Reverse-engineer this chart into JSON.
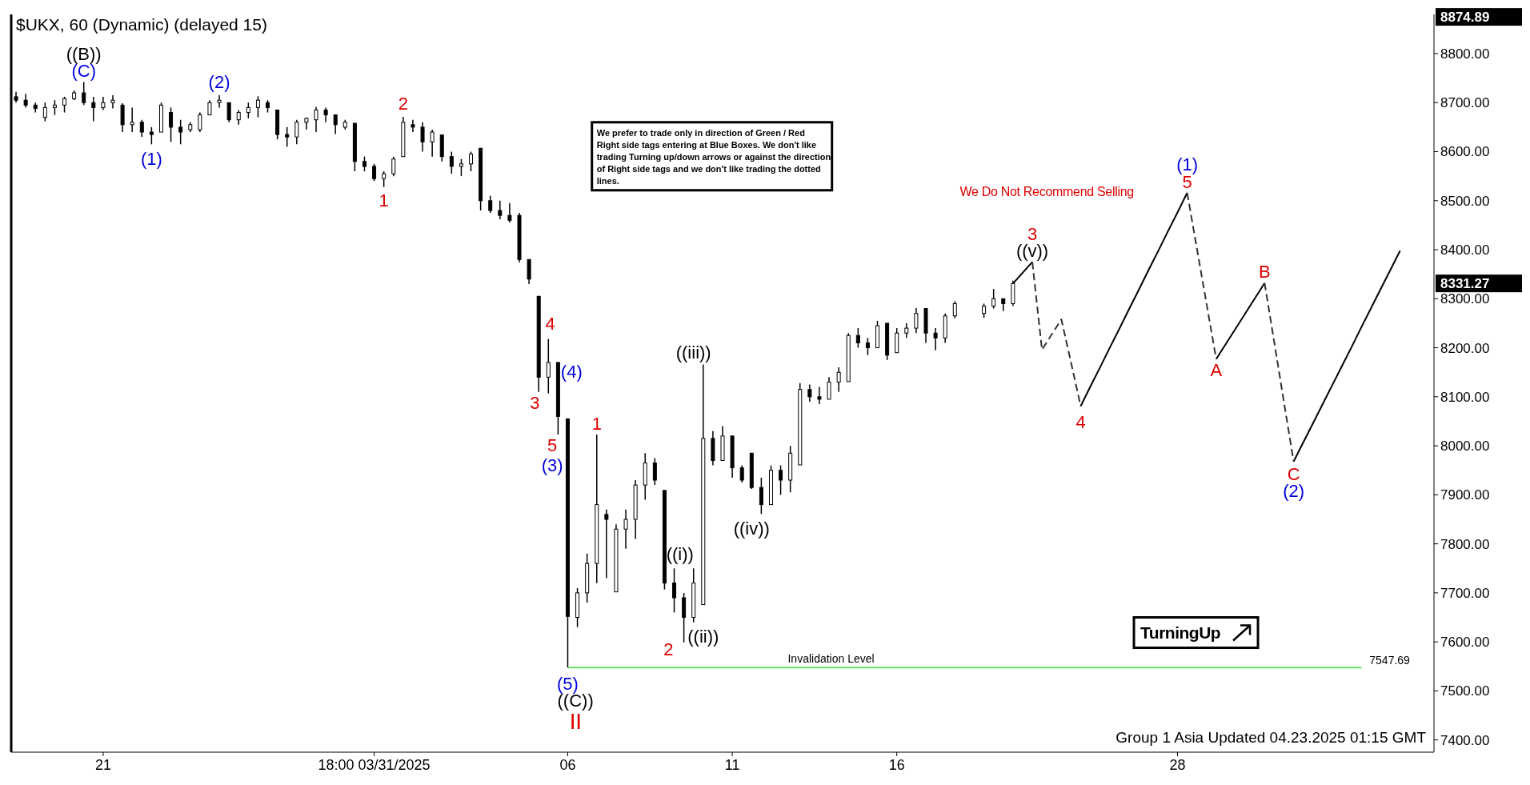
{
  "chart_data": {
    "type": "candlestick",
    "title": "$UKX, 60 (Dynamic) (delayed 15)",
    "categories": [
      null,
      null,
      null,
      null,
      null,
      null,
      null,
      null,
      null,
      "21",
      null,
      null,
      null,
      null,
      null,
      null,
      null,
      null,
      null,
      null,
      null,
      null,
      null,
      null,
      null,
      null,
      null,
      null,
      null,
      null,
      null,
      null,
      null,
      null,
      null,
      null,
      null,
      "18:00 03/31/2025",
      null,
      null,
      null,
      null,
      null,
      null,
      null,
      null,
      null,
      null,
      null,
      null,
      null,
      null,
      null,
      null,
      null,
      null,
      null,
      "06",
      null,
      null,
      null,
      null,
      null,
      null,
      null,
      null,
      null,
      null,
      null,
      null,
      null,
      null,
      null,
      null,
      "11",
      null,
      null,
      null,
      null,
      null,
      null,
      null,
      null,
      null,
      null,
      null,
      null,
      null,
      null,
      null,
      null,
      "16",
      null,
      null,
      null,
      null,
      null,
      null,
      null,
      null,
      null,
      null,
      null,
      null,
      null,
      null,
      null,
      null,
      null,
      null,
      null,
      null,
      null,
      null,
      null,
      null,
      null,
      null,
      null,
      null,
      "28",
      null,
      null,
      null,
      null,
      null,
      null,
      null,
      null,
      null,
      null,
      null,
      null,
      null,
      null,
      null,
      null,
      null,
      null,
      null,
      null,
      null,
      null,
      null,
      null,
      null,
      null
    ],
    "ohlc": [
      [
        8712,
        8722,
        8700,
        8705
      ],
      [
        8705,
        8718,
        8690,
        8695
      ],
      [
        8695,
        8700,
        8680,
        8688
      ],
      [
        8670,
        8700,
        8662,
        8690
      ],
      [
        8690,
        8705,
        8675,
        8695
      ],
      [
        8695,
        8712,
        8680,
        8708
      ],
      [
        8708,
        8725,
        8705,
        8720
      ],
      [
        8720,
        8742,
        8695,
        8700
      ],
      [
        8700,
        8712,
        8662,
        8690
      ],
      [
        8690,
        8712,
        8685,
        8700
      ],
      [
        8700,
        8715,
        8688,
        8705
      ],
      [
        8695,
        8699,
        8640,
        8655
      ],
      [
        8655,
        8690,
        8640,
        8660
      ],
      [
        8660,
        8665,
        8630,
        8640
      ],
      [
        8640,
        8650,
        8615,
        8635
      ],
      [
        8640,
        8700,
        8640,
        8695
      ],
      [
        8680,
        8690,
        8620,
        8650
      ],
      [
        8650,
        8665,
        8615,
        8640
      ],
      [
        8645,
        8660,
        8640,
        8655
      ],
      [
        8645,
        8680,
        8640,
        8675
      ],
      [
        8675,
        8705,
        8675,
        8700
      ],
      [
        8700,
        8715,
        8690,
        8705
      ],
      [
        8700,
        8700,
        8660,
        8665
      ],
      [
        8665,
        8685,
        8655,
        8680
      ],
      [
        8680,
        8700,
        8668,
        8690
      ],
      [
        8690,
        8713,
        8670,
        8705
      ],
      [
        8700,
        8705,
        8680,
        8690
      ],
      [
        8685,
        8685,
        8625,
        8635
      ],
      [
        8635,
        8650,
        8610,
        8630
      ],
      [
        8630,
        8665,
        8615,
        8660
      ],
      [
        8660,
        8670,
        8645,
        8668
      ],
      [
        8665,
        8691,
        8640,
        8685
      ],
      [
        8685,
        8690,
        8660,
        8675
      ],
      [
        8675,
        8675,
        8636,
        8655
      ],
      [
        8650,
        8665,
        8645,
        8660
      ],
      [
        8658,
        8658,
        8560,
        8580
      ],
      [
        8580,
        8590,
        8560,
        8570
      ],
      [
        8570,
        8575,
        8540,
        8545
      ],
      [
        8545,
        8560,
        8528,
        8555
      ],
      [
        8555,
        8590,
        8550,
        8585
      ],
      [
        8590,
        8671,
        8590,
        8660
      ],
      [
        8655,
        8665,
        8640,
        8650
      ],
      [
        8650,
        8660,
        8600,
        8620
      ],
      [
        8620,
        8645,
        8590,
        8640
      ],
      [
        8634,
        8634,
        8580,
        8590
      ],
      [
        8590,
        8600,
        8555,
        8570
      ],
      [
        8570,
        8585,
        8550,
        8575
      ],
      [
        8575,
        8600,
        8560,
        8595
      ],
      [
        8607,
        8607,
        8480,
        8500
      ],
      [
        8500,
        8510,
        8475,
        8480
      ],
      [
        8480,
        8500,
        8462,
        8470
      ],
      [
        8470,
        8495,
        8455,
        8460
      ],
      [
        8470,
        8475,
        8374,
        8380
      ],
      [
        8380,
        8380,
        8330,
        8340
      ],
      [
        8305,
        8305,
        8110,
        8140
      ],
      [
        8140,
        8218,
        8107,
        8170
      ],
      [
        8170,
        8170,
        8023,
        8060
      ],
      [
        8055,
        8055,
        7548,
        7652
      ],
      [
        7650,
        7710,
        7630,
        7700
      ],
      [
        7700,
        7780,
        7680,
        7760
      ],
      [
        7760,
        8023,
        7720,
        7880
      ],
      [
        7860,
        7870,
        7730,
        7850
      ],
      [
        7702,
        7840,
        7702,
        7830
      ],
      [
        7830,
        7870,
        7790,
        7850
      ],
      [
        7850,
        7930,
        7810,
        7920
      ],
      [
        7920,
        7985,
        7890,
        7965
      ],
      [
        7965,
        7975,
        7920,
        7930
      ],
      [
        7909,
        7909,
        7707,
        7720
      ],
      [
        7720,
        7750,
        7660,
        7690
      ],
      [
        7690,
        7700,
        7599,
        7650
      ],
      [
        7650,
        7750,
        7640,
        7720
      ],
      [
        7676,
        8166,
        7676,
        8015
      ],
      [
        8015,
        8030,
        7960,
        7970
      ],
      [
        7970,
        8040,
        7970,
        8020
      ],
      [
        8020,
        8020,
        7935,
        7955
      ],
      [
        7955,
        7960,
        7925,
        7930
      ],
      [
        7985,
        7985,
        7912,
        7915
      ],
      [
        7915,
        7935,
        7861,
        7880
      ],
      [
        7880,
        7960,
        7880,
        7950
      ],
      [
        7950,
        7960,
        7900,
        7930
      ],
      [
        7930,
        8000,
        7905,
        7985
      ],
      [
        7961,
        8128,
        7961,
        8115
      ],
      [
        8115,
        8125,
        8090,
        8100
      ],
      [
        8100,
        8120,
        8085,
        8095
      ],
      [
        8095,
        8140,
        8095,
        8130
      ],
      [
        8130,
        8160,
        8110,
        8150
      ],
      [
        8131,
        8230,
        8131,
        8225
      ],
      [
        8225,
        8240,
        8200,
        8210
      ],
      [
        8210,
        8220,
        8185,
        8200
      ],
      [
        8200,
        8255,
        8200,
        8245
      ],
      [
        8250,
        8250,
        8175,
        8185
      ],
      [
        8190,
        8240,
        8190,
        8230
      ],
      [
        8230,
        8250,
        8220,
        8240
      ],
      [
        8240,
        8281,
        8230,
        8270
      ],
      [
        8280,
        8280,
        8210,
        8230
      ],
      [
        8230,
        8240,
        8195,
        8220
      ],
      [
        8220,
        8270,
        8210,
        8265
      ],
      [
        8265,
        8295,
        8260,
        8290
      ],
      null,
      null,
      [
        8270,
        8290,
        8261,
        8285
      ],
      [
        8285,
        8320,
        8280,
        8300
      ],
      [
        8300,
        8300,
        8275,
        8290
      ],
      [
        8290,
        8337,
        8285,
        8331
      ],
      null,
      null,
      null,
      null,
      null,
      null,
      null,
      null,
      null,
      null,
      null,
      null,
      null,
      null,
      null,
      null,
      null,
      null,
      null,
      null,
      null,
      null,
      null,
      null,
      null,
      null,
      null,
      null,
      null,
      null,
      null,
      null,
      null,
      null,
      null,
      null,
      null,
      null,
      null,
      null,
      null,
      null,
      null
    ],
    "color": "#000000",
    "series": [
      {
        "type": "line",
        "color": "#000000",
        "line_style": "solid",
        "values": [
          null,
          null,
          null,
          null,
          null,
          null,
          null,
          null,
          null,
          null,
          null,
          null,
          null,
          null,
          null,
          null,
          null,
          null,
          null,
          null,
          null,
          null,
          null,
          null,
          null,
          null,
          null,
          null,
          null,
          null,
          null,
          null,
          null,
          null,
          null,
          null,
          null,
          null,
          null,
          null,
          null,
          null,
          null,
          null,
          null,
          null,
          null,
          null,
          null,
          null,
          null,
          null,
          null,
          null,
          null,
          null,
          null,
          null,
          null,
          null,
          null,
          null,
          null,
          null,
          null,
          null,
          null,
          null,
          null,
          null,
          null,
          null,
          null,
          null,
          null,
          null,
          null,
          null,
          null,
          null,
          null,
          null,
          null,
          null,
          null,
          null,
          null,
          null,
          null,
          null,
          null,
          null,
          null,
          null,
          null,
          null,
          null,
          null,
          null,
          null,
          null,
          null,
          null,
          8331,
          8353,
          8375,
          null,
          null,
          null,
          null,
          8081,
          8121,
          8160,
          8200,
          8239,
          8279,
          8318,
          8358,
          8397,
          8437,
          8476,
          8516,
          null,
          null,
          8177,
          8208,
          8239,
          8270,
          8301,
          8332,
          null,
          null,
          7968,
          8007,
          8046,
          8085,
          8124,
          8163,
          8202,
          8242,
          8281,
          8320,
          8359,
          8398,
          null,
          null,
          null
        ]
      },
      {
        "type": "line",
        "color": "#333333",
        "line_style": "dashed",
        "values": [
          null,
          null,
          null,
          null,
          null,
          null,
          null,
          null,
          null,
          null,
          null,
          null,
          null,
          null,
          null,
          null,
          null,
          null,
          null,
          null,
          null,
          null,
          null,
          null,
          null,
          null,
          null,
          null,
          null,
          null,
          null,
          null,
          null,
          null,
          null,
          null,
          null,
          null,
          null,
          null,
          null,
          null,
          null,
          null,
          null,
          null,
          null,
          null,
          null,
          null,
          null,
          null,
          null,
          null,
          null,
          null,
          null,
          null,
          null,
          null,
          null,
          null,
          null,
          null,
          null,
          null,
          null,
          null,
          null,
          null,
          null,
          null,
          null,
          null,
          null,
          null,
          null,
          null,
          null,
          null,
          null,
          null,
          null,
          null,
          null,
          null,
          null,
          null,
          null,
          null,
          null,
          null,
          null,
          null,
          null,
          null,
          null,
          null,
          null,
          null,
          null,
          null,
          null,
          null,
          null,
          8375,
          8196,
          8227,
          8258,
          8170,
          8081,
          null,
          null,
          null,
          null,
          null,
          null,
          null,
          null,
          null,
          null,
          8516,
          8403,
          8290,
          8177,
          null,
          null,
          null,
          null,
          8332,
          8211,
          8089,
          7968,
          null,
          null,
          null,
          null,
          null,
          null,
          null,
          null,
          null,
          null,
          null,
          null,
          null,
          null
        ]
      }
    ],
    "ylim": [
      7375,
      8880
    ],
    "yticks": [
      {
        "value": 7400,
        "label": "7400.00"
      },
      {
        "value": 7500,
        "label": "7500.00"
      },
      {
        "value": 7600,
        "label": "7600.00"
      },
      {
        "value": 7700,
        "label": "7700.00"
      },
      {
        "value": 7800,
        "label": "7800.00"
      },
      {
        "value": 7900,
        "label": "7900.00"
      },
      {
        "value": 8000,
        "label": "8000.00"
      },
      {
        "value": 8100,
        "label": "8100.00"
      },
      {
        "value": 8200,
        "label": "8200.00"
      },
      {
        "value": 8300,
        "label": "8300.00"
      },
      {
        "value": 8400,
        "label": "8400.00"
      },
      {
        "value": 8500,
        "label": "8500.00"
      },
      {
        "value": 8600,
        "label": "8600.00"
      },
      {
        "value": 8700,
        "label": "8700.00"
      },
      {
        "value": 8800,
        "label": "8800.00"
      }
    ],
    "ref_lines": [
      {
        "axis": "y",
        "value": 7547.69,
        "label": "Invalidation Level",
        "color": "#66dd66"
      }
    ],
    "annotations": [
      "((B))",
      "(C)",
      "(1)",
      "(2)",
      "2",
      "1",
      "4",
      "(4)",
      "3",
      "5",
      "(3)",
      "1",
      "((iii))",
      "((i))",
      "((ii))",
      "2",
      "((iv))",
      "(5)",
      "((C))",
      "II",
      "3",
      "((v))",
      "4",
      "(1)",
      "5",
      "B",
      "A",
      "C",
      "(2)",
      "8874.89",
      "8331.27",
      "7547.69",
      "We Do Not Recommend Selling",
      "We prefer to trade only in direction of Green / Red Right side tags entering at Blue Boxes. We don't like trading Turning up/down arrows or against the direction of Right side tags and we don't like trading the dotted lines.",
      "TurningUp",
      "Group 1 Asia Updated 04.23.2025 01:15 GMT"
    ]
  }
}
